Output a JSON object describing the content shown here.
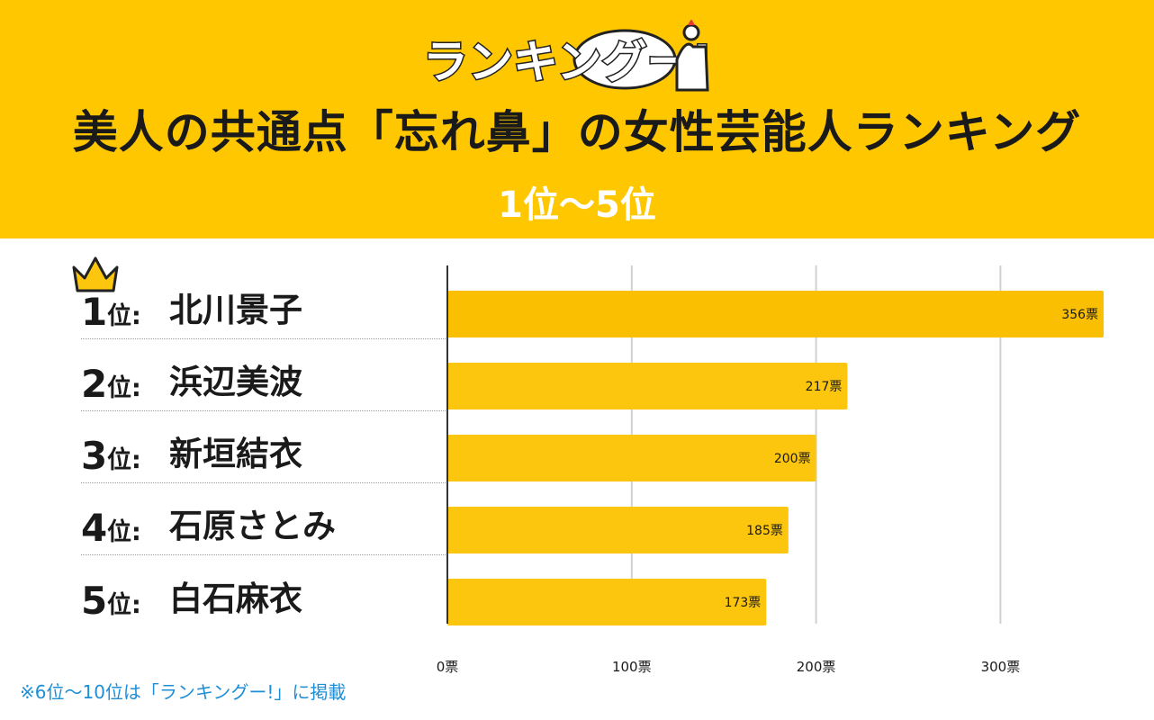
{
  "logo": {
    "text": "ランキングー!"
  },
  "header": {
    "title": "美人の共通点「忘れ鼻」の女性芸能人ランキング",
    "subtitle": "1位〜5位"
  },
  "ranks": [
    {
      "num": "1",
      "suffix": "位:",
      "name": "北川景子"
    },
    {
      "num": "2",
      "suffix": "位:",
      "name": "浜辺美波"
    },
    {
      "num": "3",
      "suffix": "位:",
      "name": "新垣結衣"
    },
    {
      "num": "4",
      "suffix": "位:",
      "name": "石原さとみ"
    },
    {
      "num": "5",
      "suffix": "位:",
      "name": "白石麻衣"
    }
  ],
  "chart_data": {
    "type": "bar",
    "orientation": "horizontal",
    "categories": [
      "北川景子",
      "浜辺美波",
      "新垣結衣",
      "石原さとみ",
      "白石麻衣"
    ],
    "values": [
      356,
      217,
      200,
      185,
      173
    ],
    "value_labels": [
      "356票",
      "217票",
      "200票",
      "185票",
      "173票"
    ],
    "xlim": [
      0,
      375
    ],
    "xticks": [
      0,
      100,
      200,
      300
    ],
    "xtick_labels": [
      "0票",
      "100票",
      "200票",
      "300票"
    ],
    "grid": true,
    "colors": {
      "first": "#fbbf02",
      "others": "#fcc60f",
      "grid": "#d0d0d0",
      "axis": "#333333"
    }
  },
  "footnote": "※6位〜10位は「ランキングー!」に掲載",
  "colors": {
    "header_bg": "#fec700",
    "crown": "#fcc60f",
    "footnote": "#1e8fd6"
  }
}
